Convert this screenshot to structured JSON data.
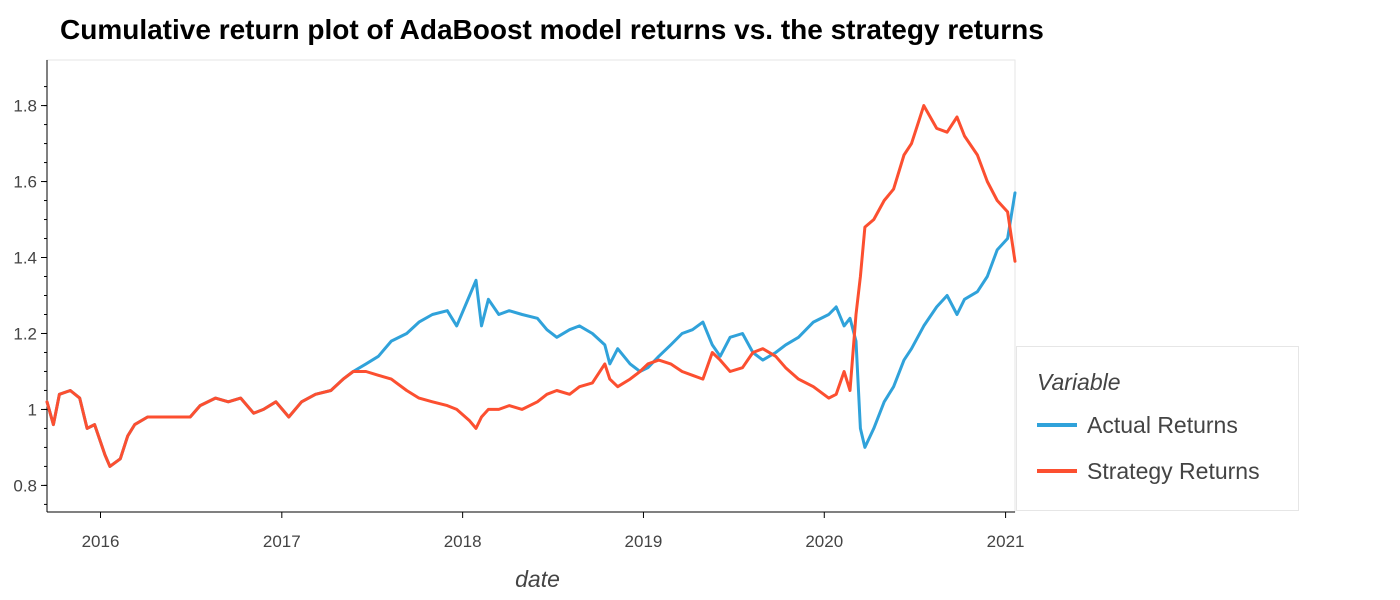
{
  "chart_data": {
    "type": "line",
    "title": "Cumulative return plot of AdaBoost model returns vs. the strategy returns",
    "xlabel": "date",
    "ylabel": "",
    "x_type": "date",
    "xlim": [
      "2015-09-15",
      "2021-01-20"
    ],
    "ylim": [
      0.73,
      1.92
    ],
    "x_ticks": [
      "2016",
      "2017",
      "2018",
      "2019",
      "2020",
      "2021"
    ],
    "y_ticks": [
      {
        "value": 0.8,
        "label": "0.8"
      },
      {
        "value": 1.0,
        "label": "1"
      },
      {
        "value": 1.2,
        "label": "1.2"
      },
      {
        "value": 1.4,
        "label": "1.4"
      },
      {
        "value": 1.6,
        "label": "1.6"
      },
      {
        "value": 1.8,
        "label": "1.8"
      }
    ],
    "legend": {
      "title": "Variable",
      "position": "right"
    },
    "grid": false,
    "series": [
      {
        "name": "Actual Returns",
        "color": "#30a2da",
        "points": [
          [
            "2015-09-15",
            1.02
          ],
          [
            "2015-09-28",
            0.96
          ],
          [
            "2015-10-10",
            1.04
          ],
          [
            "2015-11-01",
            1.05
          ],
          [
            "2015-11-20",
            1.03
          ],
          [
            "2015-12-05",
            0.95
          ],
          [
            "2015-12-20",
            0.96
          ],
          [
            "2016-01-10",
            0.88
          ],
          [
            "2016-01-20",
            0.85
          ],
          [
            "2016-02-10",
            0.87
          ],
          [
            "2016-02-25",
            0.93
          ],
          [
            "2016-03-10",
            0.96
          ],
          [
            "2016-04-05",
            0.98
          ],
          [
            "2016-06-30",
            0.98
          ],
          [
            "2016-07-20",
            1.01
          ],
          [
            "2016-08-20",
            1.03
          ],
          [
            "2016-09-15",
            1.02
          ],
          [
            "2016-10-10",
            1.03
          ],
          [
            "2016-11-05",
            0.99
          ],
          [
            "2016-11-25",
            1.0
          ],
          [
            "2016-12-20",
            1.02
          ],
          [
            "2017-01-15",
            0.98
          ],
          [
            "2017-02-10",
            1.02
          ],
          [
            "2017-03-10",
            1.04
          ],
          [
            "2017-04-10",
            1.05
          ],
          [
            "2017-05-05",
            1.08
          ],
          [
            "2017-05-25",
            1.1
          ],
          [
            "2017-06-20",
            1.12
          ],
          [
            "2017-07-15",
            1.14
          ],
          [
            "2017-08-10",
            1.18
          ],
          [
            "2017-09-10",
            1.2
          ],
          [
            "2017-10-05",
            1.23
          ],
          [
            "2017-11-01",
            1.25
          ],
          [
            "2017-12-01",
            1.26
          ],
          [
            "2017-12-20",
            1.22
          ],
          [
            "2018-01-15",
            1.3
          ],
          [
            "2018-01-28",
            1.34
          ],
          [
            "2018-02-08",
            1.22
          ],
          [
            "2018-02-22",
            1.29
          ],
          [
            "2018-03-15",
            1.25
          ],
          [
            "2018-04-05",
            1.26
          ],
          [
            "2018-05-01",
            1.25
          ],
          [
            "2018-06-01",
            1.24
          ],
          [
            "2018-06-20",
            1.21
          ],
          [
            "2018-07-10",
            1.19
          ],
          [
            "2018-08-05",
            1.21
          ],
          [
            "2018-08-25",
            1.22
          ],
          [
            "2018-09-20",
            1.2
          ],
          [
            "2018-10-15",
            1.17
          ],
          [
            "2018-10-25",
            1.12
          ],
          [
            "2018-11-10",
            1.16
          ],
          [
            "2018-12-05",
            1.12
          ],
          [
            "2018-12-25",
            1.1
          ],
          [
            "2019-01-10",
            1.11
          ],
          [
            "2019-02-01",
            1.14
          ],
          [
            "2019-02-25",
            1.17
          ],
          [
            "2019-03-20",
            1.2
          ],
          [
            "2019-04-10",
            1.21
          ],
          [
            "2019-05-01",
            1.23
          ],
          [
            "2019-05-20",
            1.17
          ],
          [
            "2019-06-05",
            1.14
          ],
          [
            "2019-06-25",
            1.19
          ],
          [
            "2019-07-20",
            1.2
          ],
          [
            "2019-08-10",
            1.15
          ],
          [
            "2019-08-30",
            1.13
          ],
          [
            "2019-09-25",
            1.15
          ],
          [
            "2019-10-15",
            1.17
          ],
          [
            "2019-11-10",
            1.19
          ],
          [
            "2019-12-10",
            1.23
          ],
          [
            "2020-01-10",
            1.25
          ],
          [
            "2020-01-25",
            1.27
          ],
          [
            "2020-02-10",
            1.22
          ],
          [
            "2020-02-22",
            1.24
          ],
          [
            "2020-03-05",
            1.18
          ],
          [
            "2020-03-14",
            0.95
          ],
          [
            "2020-03-23",
            0.9
          ],
          [
            "2020-04-10",
            0.95
          ],
          [
            "2020-05-01",
            1.02
          ],
          [
            "2020-05-20",
            1.06
          ],
          [
            "2020-06-10",
            1.13
          ],
          [
            "2020-06-25",
            1.16
          ],
          [
            "2020-07-20",
            1.22
          ],
          [
            "2020-08-15",
            1.27
          ],
          [
            "2020-09-05",
            1.3
          ],
          [
            "2020-09-25",
            1.25
          ],
          [
            "2020-10-10",
            1.29
          ],
          [
            "2020-11-05",
            1.31
          ],
          [
            "2020-11-25",
            1.35
          ],
          [
            "2020-12-15",
            1.42
          ],
          [
            "2021-01-05",
            1.45
          ],
          [
            "2021-01-20",
            1.57
          ]
        ]
      },
      {
        "name": "Strategy Returns",
        "color": "#fc4f30",
        "points": [
          [
            "2015-09-15",
            1.02
          ],
          [
            "2015-09-28",
            0.96
          ],
          [
            "2015-10-10",
            1.04
          ],
          [
            "2015-11-01",
            1.05
          ],
          [
            "2015-11-20",
            1.03
          ],
          [
            "2015-12-05",
            0.95
          ],
          [
            "2015-12-20",
            0.96
          ],
          [
            "2016-01-10",
            0.88
          ],
          [
            "2016-01-20",
            0.85
          ],
          [
            "2016-02-10",
            0.87
          ],
          [
            "2016-02-25",
            0.93
          ],
          [
            "2016-03-10",
            0.96
          ],
          [
            "2016-04-05",
            0.98
          ],
          [
            "2016-06-30",
            0.98
          ],
          [
            "2016-07-20",
            1.01
          ],
          [
            "2016-08-20",
            1.03
          ],
          [
            "2016-09-15",
            1.02
          ],
          [
            "2016-10-10",
            1.03
          ],
          [
            "2016-11-05",
            0.99
          ],
          [
            "2016-11-25",
            1.0
          ],
          [
            "2016-12-20",
            1.02
          ],
          [
            "2017-01-15",
            0.98
          ],
          [
            "2017-02-10",
            1.02
          ],
          [
            "2017-03-10",
            1.04
          ],
          [
            "2017-04-10",
            1.05
          ],
          [
            "2017-05-05",
            1.08
          ],
          [
            "2017-05-25",
            1.1
          ],
          [
            "2017-06-20",
            1.1
          ],
          [
            "2017-07-15",
            1.09
          ],
          [
            "2017-08-10",
            1.08
          ],
          [
            "2017-09-10",
            1.05
          ],
          [
            "2017-10-05",
            1.03
          ],
          [
            "2017-11-01",
            1.02
          ],
          [
            "2017-12-01",
            1.01
          ],
          [
            "2017-12-20",
            1.0
          ],
          [
            "2018-01-15",
            0.97
          ],
          [
            "2018-01-28",
            0.95
          ],
          [
            "2018-02-08",
            0.98
          ],
          [
            "2018-02-22",
            1.0
          ],
          [
            "2018-03-15",
            1.0
          ],
          [
            "2018-04-05",
            1.01
          ],
          [
            "2018-05-01",
            1.0
          ],
          [
            "2018-06-01",
            1.02
          ],
          [
            "2018-06-20",
            1.04
          ],
          [
            "2018-07-10",
            1.05
          ],
          [
            "2018-08-05",
            1.04
          ],
          [
            "2018-08-25",
            1.06
          ],
          [
            "2018-09-20",
            1.07
          ],
          [
            "2018-10-15",
            1.12
          ],
          [
            "2018-10-25",
            1.08
          ],
          [
            "2018-11-10",
            1.06
          ],
          [
            "2018-12-05",
            1.08
          ],
          [
            "2018-12-25",
            1.1
          ],
          [
            "2019-01-10",
            1.12
          ],
          [
            "2019-02-01",
            1.13
          ],
          [
            "2019-02-25",
            1.12
          ],
          [
            "2019-03-20",
            1.1
          ],
          [
            "2019-04-10",
            1.09
          ],
          [
            "2019-05-01",
            1.08
          ],
          [
            "2019-05-20",
            1.15
          ],
          [
            "2019-06-05",
            1.13
          ],
          [
            "2019-06-25",
            1.1
          ],
          [
            "2019-07-20",
            1.11
          ],
          [
            "2019-08-10",
            1.15
          ],
          [
            "2019-08-30",
            1.16
          ],
          [
            "2019-09-25",
            1.14
          ],
          [
            "2019-10-15",
            1.11
          ],
          [
            "2019-11-10",
            1.08
          ],
          [
            "2019-12-10",
            1.06
          ],
          [
            "2020-01-10",
            1.03
          ],
          [
            "2020-01-25",
            1.04
          ],
          [
            "2020-02-10",
            1.1
          ],
          [
            "2020-02-22",
            1.05
          ],
          [
            "2020-03-05",
            1.25
          ],
          [
            "2020-03-14",
            1.35
          ],
          [
            "2020-03-23",
            1.48
          ],
          [
            "2020-04-10",
            1.5
          ],
          [
            "2020-05-01",
            1.55
          ],
          [
            "2020-05-20",
            1.58
          ],
          [
            "2020-06-10",
            1.67
          ],
          [
            "2020-06-25",
            1.7
          ],
          [
            "2020-07-20",
            1.8
          ],
          [
            "2020-08-15",
            1.74
          ],
          [
            "2020-09-05",
            1.73
          ],
          [
            "2020-09-25",
            1.77
          ],
          [
            "2020-10-10",
            1.72
          ],
          [
            "2020-11-05",
            1.67
          ],
          [
            "2020-11-25",
            1.6
          ],
          [
            "2020-12-15",
            1.55
          ],
          [
            "2021-01-05",
            1.52
          ],
          [
            "2021-01-20",
            1.39
          ]
        ]
      }
    ]
  }
}
